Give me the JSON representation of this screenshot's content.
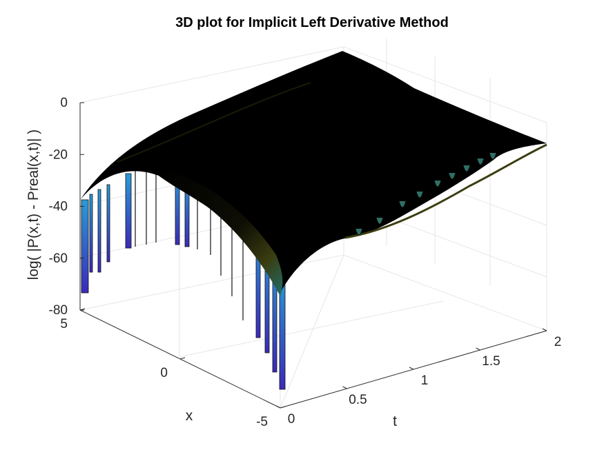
{
  "chart_data": {
    "type": "surface",
    "title": "3D plot for Implicit Left Derivative Method",
    "xlabel": "t",
    "ylabel": "x",
    "zlabel": "log( |P(x,t) - Preal(x,t)| )",
    "t_ticks": [
      "0",
      "0.5",
      "1",
      "1.5",
      "2"
    ],
    "x_ticks": [
      "-5",
      "0",
      "5"
    ],
    "z_ticks": [
      "-80",
      "-60",
      "-40",
      "-20",
      "0"
    ],
    "tlim": [
      0,
      2
    ],
    "xlim": [
      -5,
      5
    ],
    "zlim": [
      -80,
      0
    ],
    "grid": true,
    "colormap": "parula",
    "edge_color": "#000000",
    "surface_ridge": [
      {
        "t": 0.0,
        "z": -2
      },
      {
        "t": 0.5,
        "z": -5
      },
      {
        "t": 1.0,
        "z": -9
      },
      {
        "t": 1.5,
        "z": -13
      },
      {
        "t": 2.0,
        "z": -17
      }
    ],
    "boundary_drop_at_x_minus5": {
      "t": 0.0,
      "z": -77
    },
    "boundary_drop_at_x_plus5": {
      "t": 0.0,
      "z": -75
    }
  }
}
